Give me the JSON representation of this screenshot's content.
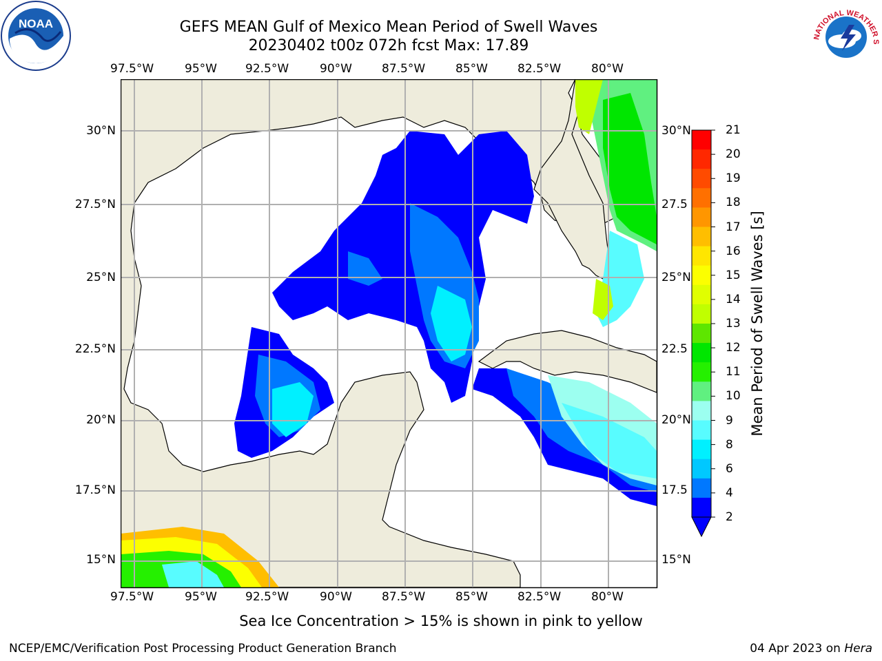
{
  "title": {
    "line1": "GEFS MEAN Gulf of Mexico Mean Period of Swell Waves",
    "line2": "20230402 t00z 072h fcst   Max: 17.89"
  },
  "logos": {
    "left": "NOAA",
    "right": "NATIONAL WEATHER SERVICE"
  },
  "axes": {
    "lon_labels": [
      "97.5°W",
      "95°W",
      "92.5°W",
      "90°W",
      "87.5°W",
      "85°W",
      "82.5°W",
      "80°W"
    ],
    "lat_labels_left": [
      "30°N",
      "27.5°N",
      "25°N",
      "22.5°N",
      "20°N",
      "17.5°N",
      "15°N"
    ],
    "lat_labels_right": [
      "30°N",
      "27.5",
      "25°N",
      "22.5",
      "20°N",
      "17.5",
      "15°N"
    ]
  },
  "colorbar": {
    "label": "Mean Period of Swell Waves [s]",
    "ticks": [
      "21",
      "20",
      "19",
      "18",
      "17",
      "16",
      "15",
      "14",
      "13",
      "12",
      "11",
      "10",
      "9",
      "8",
      "6",
      "4",
      "2"
    ],
    "colors": [
      "#ff0000",
      "#ff2800",
      "#ff4b00",
      "#ff7000",
      "#ff9600",
      "#ffbe00",
      "#ffe600",
      "#fcff00",
      "#e0ff00",
      "#c0ff00",
      "#5ee600",
      "#00e600",
      "#25f000",
      "#60f080",
      "#9cfff0",
      "#58fcff",
      "#00f0ff",
      "#00c8ff",
      "#0078ff",
      "#0000ff"
    ]
  },
  "map": {
    "land_color": "#eeecdc",
    "ocean_color": "#ffffff",
    "grid_color": "#b0b0b0"
  },
  "note": "Sea Ice Concentration > 15% is shown in pink to yellow",
  "footer": {
    "left": "NCEP/EMC/Verification Post Processing Product Generation Branch",
    "right_date": "04 Apr 2023 on ",
    "right_machine": "Hera"
  }
}
